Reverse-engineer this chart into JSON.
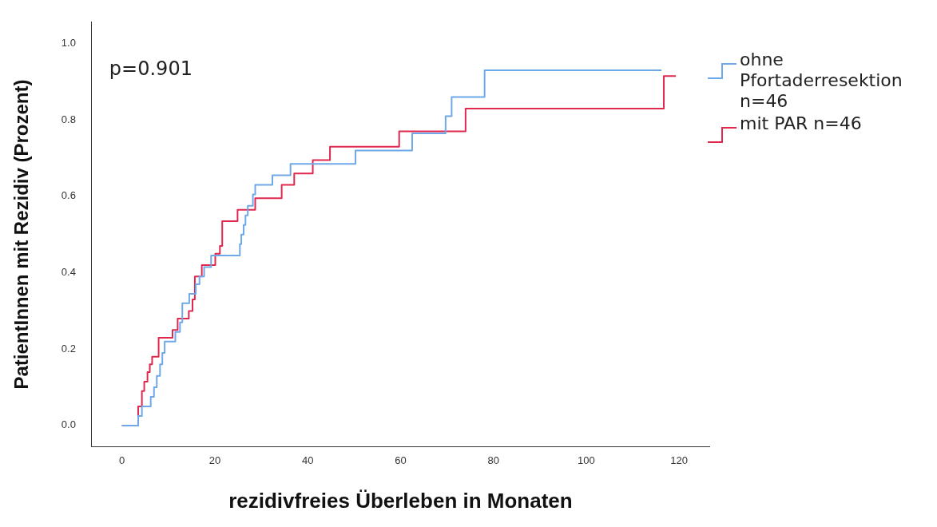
{
  "chart_data": {
    "type": "step",
    "xlabel": "rezidivfreies Überleben in Monaten",
    "ylabel": "PatientInnen mit Rezidiv (Prozent)",
    "annotations": [
      "p=0.901"
    ],
    "xlim": [
      -6.5,
      126.5
    ],
    "xticks": [
      0,
      20,
      40,
      60,
      80,
      100,
      120
    ],
    "ylim": [
      -0.055,
      1.056
    ],
    "yticks": [
      {
        "value": 0,
        "label": "0.0"
      },
      {
        "value": 0.2,
        "label": "0.2"
      },
      {
        "value": 0.4,
        "label": "0.4"
      },
      {
        "value": 0.6,
        "label": "0.6"
      },
      {
        "value": 0.8,
        "label": "0.8"
      },
      {
        "value": 1,
        "label": "1.0"
      }
    ],
    "grid": false,
    "legend": "right",
    "line_style": "solid",
    "marker": "none",
    "series": [
      {
        "name": "ohne Pfortaderresektion n=46",
        "color": "#6fa8e8",
        "x": [
          0,
          3.5,
          4.3,
          6.2,
          6.9,
          7.5,
          8.2,
          8.7,
          9.2,
          11.5,
          12.5,
          13.0,
          14.5,
          15.9,
          16.7,
          17.7,
          19.2,
          25.4,
          25.7,
          26.2,
          26.6,
          27.1,
          28.2,
          28.7,
          32.4,
          36.3,
          50.3,
          62.5,
          69.7,
          71.0,
          78.1,
          116.2
        ],
        "values": [
          0,
          0.025,
          0.05,
          0.075,
          0.1,
          0.13,
          0.16,
          0.19,
          0.22,
          0.245,
          0.27,
          0.32,
          0.345,
          0.37,
          0.39,
          0.415,
          0.445,
          0.475,
          0.5,
          0.525,
          0.55,
          0.575,
          0.605,
          0.63,
          0.655,
          0.685,
          0.72,
          0.765,
          0.81,
          0.86,
          0.93,
          0.93
        ]
      },
      {
        "name": "mit PAR n=46",
        "color": "#e0284f",
        "x": [
          0,
          3.5,
          4.3,
          4.8,
          5.5,
          6.0,
          6.5,
          7.9,
          10.9,
          12.0,
          14.4,
          15.2,
          15.7,
          17.2,
          20.1,
          21.1,
          21.6,
          24.9,
          28.7,
          34.4,
          37.1,
          41.1,
          44.8,
          59.7,
          74.0,
          116.7,
          119.3
        ],
        "values": [
          0,
          0.05,
          0.09,
          0.115,
          0.14,
          0.16,
          0.18,
          0.23,
          0.25,
          0.28,
          0.3,
          0.33,
          0.39,
          0.42,
          0.45,
          0.47,
          0.535,
          0.565,
          0.595,
          0.63,
          0.66,
          0.695,
          0.73,
          0.77,
          0.83,
          0.915,
          0.915
        ]
      }
    ]
  }
}
